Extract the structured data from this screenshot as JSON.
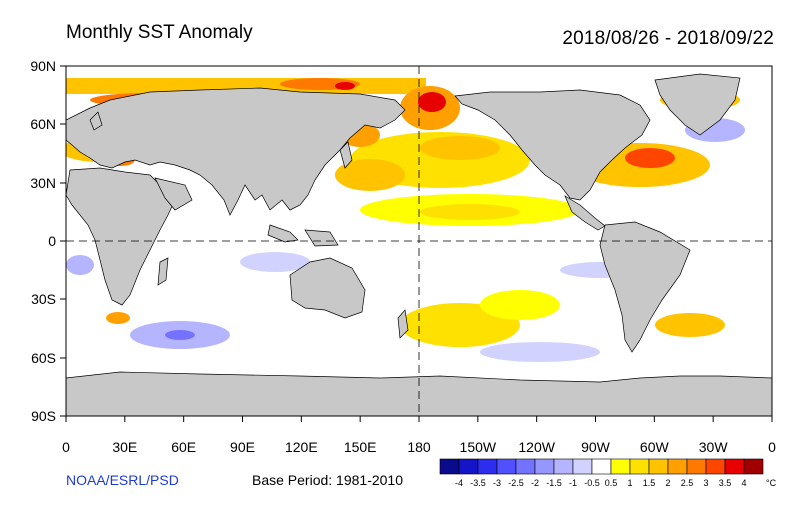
{
  "title": "Monthly SST Anomaly",
  "date_range": "2018/08/26 - 2018/09/22",
  "credit": "NOAA/ESRL/PSD",
  "base_period": "Base Period: 1981-2010",
  "lat_labels": [
    "90N",
    "60N",
    "30N",
    "0",
    "30S",
    "60S",
    "90S"
  ],
  "lon_labels": [
    "0",
    "30E",
    "60E",
    "90E",
    "120E",
    "150E",
    "180",
    "150W",
    "120W",
    "90W",
    "60W",
    "30W",
    "0"
  ],
  "colorbar": {
    "unit": "°C",
    "labels": [
      "-4",
      "-3.5",
      "-3",
      "-2.5",
      "-2",
      "-1.5",
      "-1",
      "-0.5",
      "0.5",
      "1",
      "1.5",
      "2",
      "2.5",
      "3",
      "3.5",
      "4"
    ],
    "colors": [
      "#0a0a8c",
      "#1414c8",
      "#2d2df0",
      "#5050ff",
      "#7373ff",
      "#9696ff",
      "#b4b4ff",
      "#d2d2ff",
      "#ffffff",
      "#ffff00",
      "#ffe100",
      "#ffc300",
      "#ffa000",
      "#ff7800",
      "#ff4600",
      "#e60000",
      "#a00000"
    ]
  },
  "colors": {
    "land": "#c8c8c8",
    "ocean": "#ffffff",
    "coast": "#000000"
  }
}
